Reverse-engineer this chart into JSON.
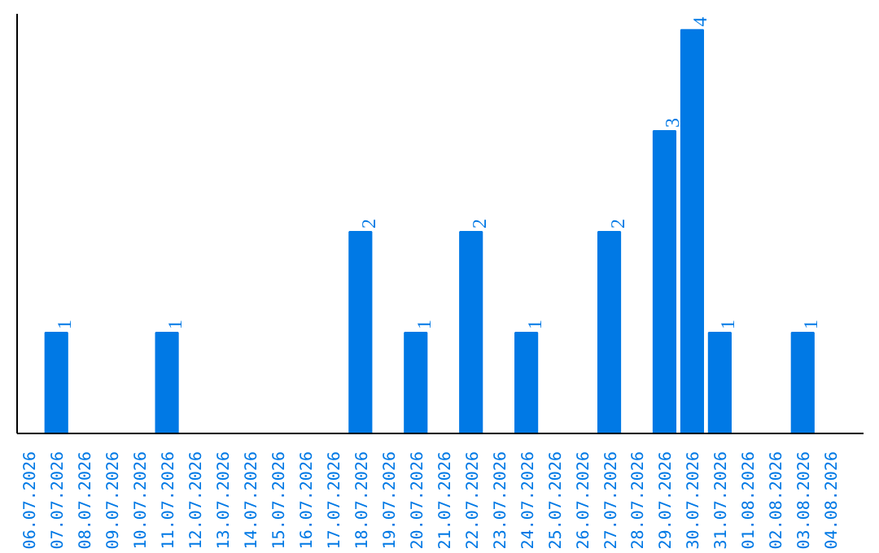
{
  "chart_data": {
    "type": "bar",
    "categories": [
      "06.07.2026",
      "07.07.2026",
      "08.07.2026",
      "09.07.2026",
      "10.07.2026",
      "11.07.2026",
      "12.07.2026",
      "13.07.2026",
      "14.07.2026",
      "15.07.2026",
      "16.07.2026",
      "17.07.2026",
      "18.07.2026",
      "19.07.2026",
      "20.07.2026",
      "21.07.2026",
      "22.07.2026",
      "23.07.2026",
      "24.07.2026",
      "25.07.2026",
      "26.07.2026",
      "27.07.2026",
      "28.07.2026",
      "29.07.2026",
      "30.07.2026",
      "31.07.2026",
      "01.08.2026",
      "02.08.2026",
      "03.08.2026",
      "04.08.2026"
    ],
    "values": [
      0,
      1,
      0,
      0,
      0,
      1,
      0,
      0,
      0,
      0,
      0,
      0,
      2,
      0,
      1,
      0,
      2,
      0,
      1,
      0,
      0,
      2,
      0,
      3,
      4,
      1,
      0,
      0,
      1,
      0
    ],
    "value_labels": [
      null,
      "1",
      null,
      null,
      null,
      "1",
      null,
      null,
      null,
      null,
      null,
      null,
      "2",
      null,
      "1",
      null,
      "2",
      null,
      "1",
      null,
      null,
      "2",
      null,
      "3",
      "4",
      "1",
      null,
      null,
      "1",
      null
    ],
    "color": "#0079e5",
    "grid": false
  }
}
